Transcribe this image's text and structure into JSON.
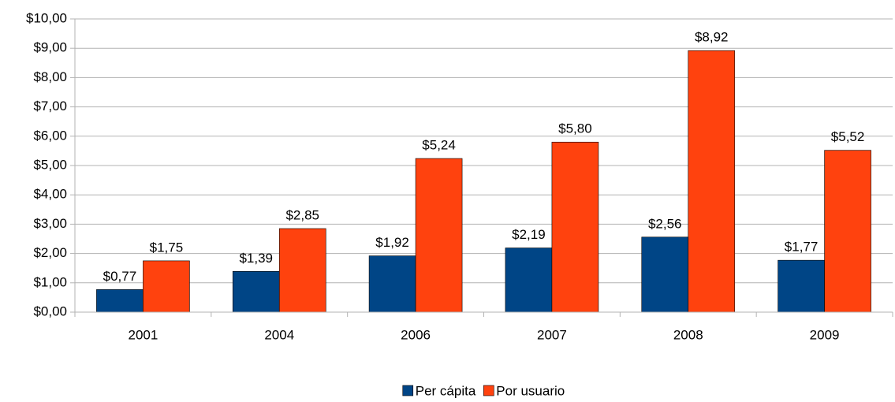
{
  "chart_data": {
    "type": "bar",
    "categories": [
      "2001",
      "2004",
      "2006",
      "2007",
      "2008",
      "2009"
    ],
    "series": [
      {
        "name": "Per cápita",
        "color": "#004586",
        "values": [
          0.77,
          1.39,
          1.92,
          2.19,
          2.56,
          1.77
        ],
        "value_labels": [
          "$0,77",
          "$1,39",
          "$1,92",
          "$2,19",
          "$2,56",
          "$1,77"
        ]
      },
      {
        "name": "Por usuario",
        "color": "#ff420e",
        "values": [
          1.75,
          2.85,
          5.24,
          5.8,
          8.92,
          5.52
        ],
        "value_labels": [
          "$1,75",
          "$2,85",
          "$5,24",
          "$5,80",
          "$8,92",
          "$5,52"
        ]
      }
    ],
    "ylim": [
      0,
      10
    ],
    "yticks": [
      {
        "value": 0,
        "label": "$0,00"
      },
      {
        "value": 1,
        "label": "$1,00"
      },
      {
        "value": 2,
        "label": "$2,00"
      },
      {
        "value": 3,
        "label": "$3,00"
      },
      {
        "value": 4,
        "label": "$4,00"
      },
      {
        "value": 5,
        "label": "$5,00"
      },
      {
        "value": 6,
        "label": "$6,00"
      },
      {
        "value": 7,
        "label": "$7,00"
      },
      {
        "value": 8,
        "label": "$8,00"
      },
      {
        "value": 9,
        "label": "$9,00"
      },
      {
        "value": 10,
        "label": "$10,00"
      }
    ],
    "grid": true,
    "legend": "bottom"
  }
}
